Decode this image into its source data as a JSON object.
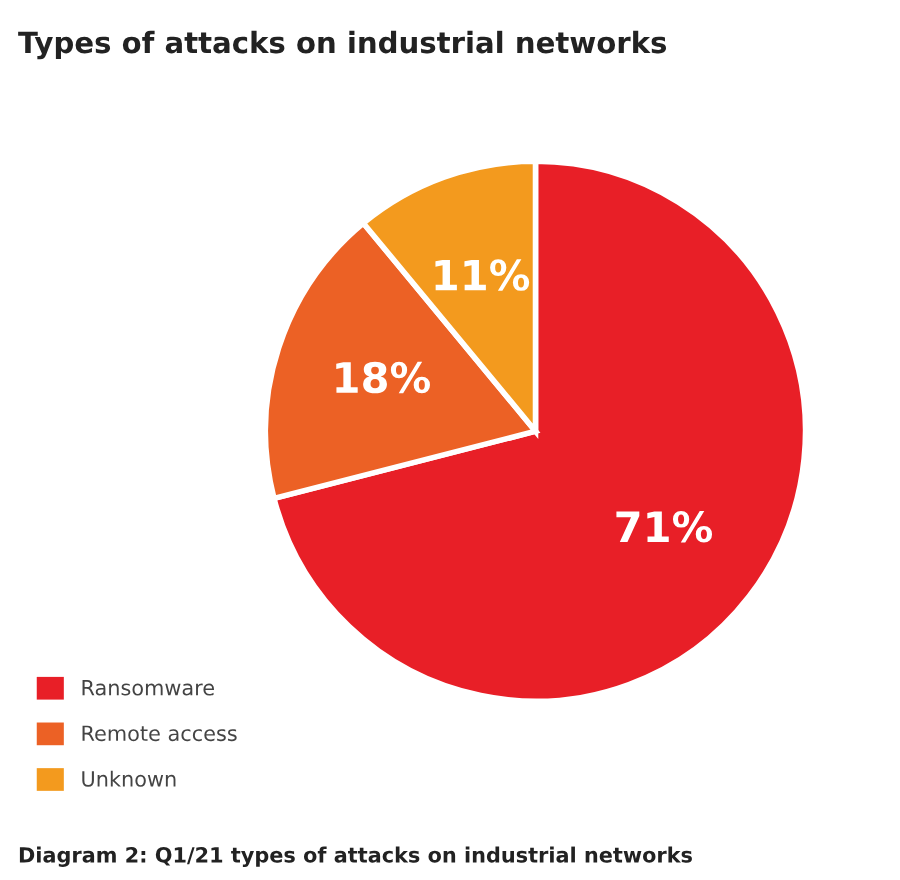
{
  "chart_data": {
    "type": "pie",
    "title": "Types of attacks on industrial networks",
    "categories": [
      "Ransomware",
      "Remote access",
      "Unknown"
    ],
    "values": [
      71,
      18,
      11
    ],
    "colors": [
      "#e81f27",
      "#ec6125",
      "#f39a1e"
    ],
    "value_labels": [
      "71%",
      "18%",
      "11%"
    ],
    "legend": "bottom left",
    "annotations": [
      "Diagram 2: Q1/21 types of attacks on industrial networks"
    ]
  }
}
